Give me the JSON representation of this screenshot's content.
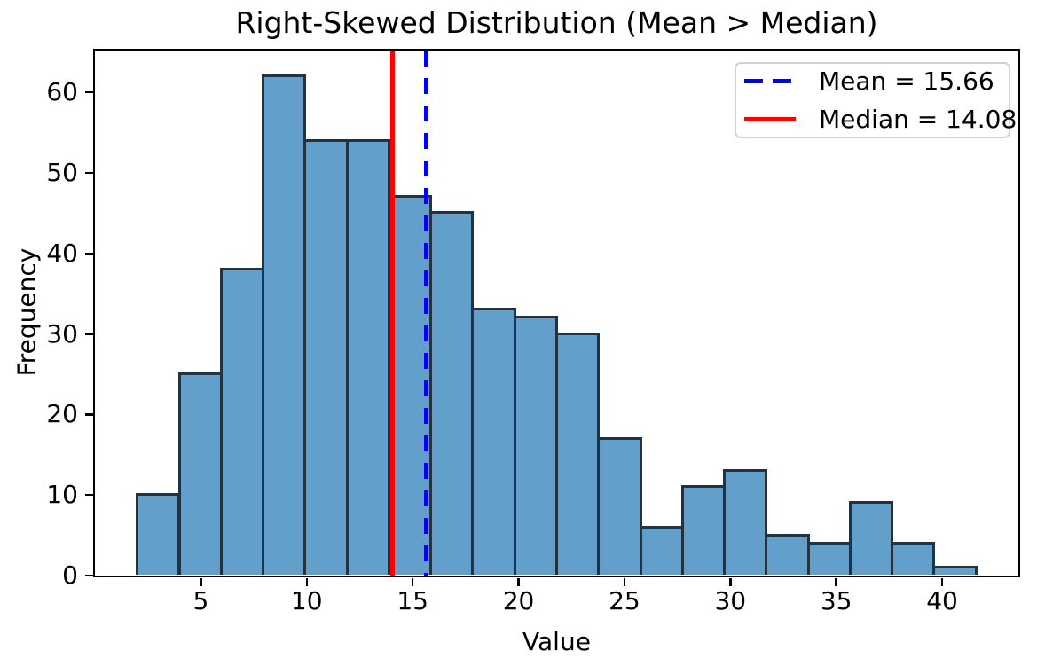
{
  "figure": {
    "title": "Right-Skewed Distribution (Mean > Median)",
    "xlabel": "Value",
    "ylabel": "Frequency"
  },
  "legend": {
    "position": "upper right",
    "items": [
      {
        "label": "Mean = 15.66",
        "color": "#0000ff",
        "line_style": "dashed"
      },
      {
        "label": "Median = 14.08",
        "color": "#ff0000",
        "line_style": "solid"
      }
    ]
  },
  "chart_data": {
    "type": "bar",
    "subtype": "histogram",
    "title": "Right-Skewed Distribution (Mean > Median)",
    "xlabel": "Value",
    "ylabel": "Frequency",
    "bin_start": 2.02,
    "bin_width": 1.98,
    "bin_count": 20,
    "frequencies": [
      10,
      25,
      38,
      62,
      54,
      54,
      47,
      45,
      33,
      32,
      30,
      17,
      6,
      11,
      13,
      5,
      4,
      9,
      4,
      1
    ],
    "total_count": 500,
    "x_ticks": [
      5,
      10,
      15,
      20,
      25,
      30,
      35,
      40
    ],
    "y_ticks": [
      0,
      10,
      20,
      30,
      40,
      50,
      60
    ],
    "xlim": [
      0,
      43.6
    ],
    "ylim": [
      0,
      65.2
    ],
    "grid": false,
    "bar_fill_color": "#62a0cb",
    "bar_edge_color": "rgba(15,19,25,0.78)",
    "mean_line": {
      "value": 15.66,
      "color": "#0000ff",
      "style": "dashed",
      "label": "Mean = 15.66"
    },
    "median_line": {
      "value": 14.08,
      "color": "#ff0000",
      "style": "solid",
      "label": "Median = 14.08"
    },
    "legend_position": "upper right"
  }
}
